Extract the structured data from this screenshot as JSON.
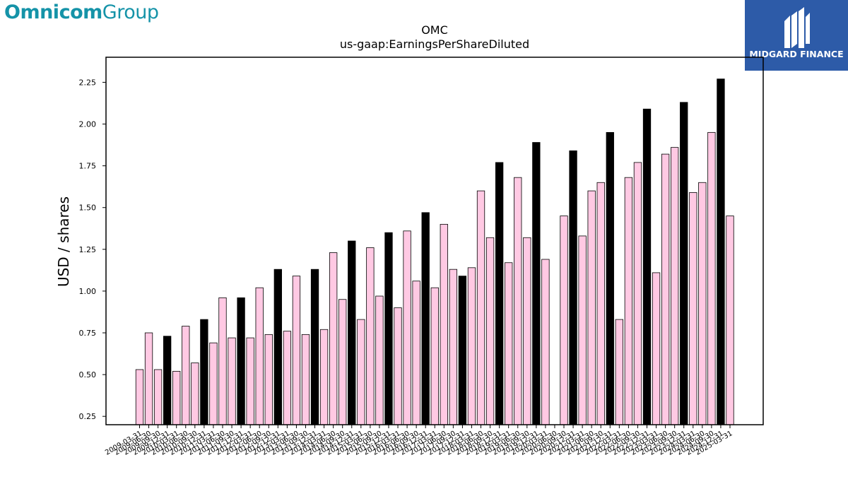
{
  "branding": {
    "left_logo_bold": "Omnicom",
    "left_logo_light": "Group",
    "right_logo_text": "MIDGARD FINANCE",
    "left_logo_color": "#1593a8",
    "right_logo_bg": "#2d5ba8"
  },
  "colors": {
    "bar_pink": "#ffc9e3",
    "bar_black": "#000000",
    "axis": "#000000"
  },
  "chart_data": {
    "type": "bar",
    "title": "OMC",
    "subtitle": "us-gaap:EarningsPerShareDiluted",
    "xlabel": "",
    "ylabel": "USD / shares",
    "ylim": [
      0.2,
      2.4
    ],
    "yticks": [
      "0.25",
      "0.50",
      "0.75",
      "1.00",
      "1.25",
      "1.50",
      "1.75",
      "2.00",
      "2.25"
    ],
    "grid": false,
    "categories": [
      "2009-03-31",
      "2009-06-30",
      "2009-09-30",
      "2009-12-31",
      "2010-03-31",
      "2010-06-30",
      "2010-09-30",
      "2010-12-31",
      "2011-03-31",
      "2011-06-30",
      "2011-09-30",
      "2011-12-31",
      "2012-03-31",
      "2012-06-30",
      "2012-09-30",
      "2012-12-31",
      "2013-03-31",
      "2013-06-30",
      "2013-09-30",
      "2013-12-31",
      "2014-03-31",
      "2014-06-30",
      "2014-09-30",
      "2014-12-31",
      "2015-03-31",
      "2015-06-30",
      "2015-09-30",
      "2015-12-31",
      "2016-03-31",
      "2016-06-30",
      "2016-09-30",
      "2016-12-31",
      "2017-03-31",
      "2017-06-30",
      "2017-09-30",
      "2017-12-31",
      "2018-03-31",
      "2018-06-30",
      "2018-09-30",
      "2018-12-31",
      "2019-03-31",
      "2019-06-30",
      "2019-09-30",
      "2019-12-31",
      "2020-03-31",
      "2020-06-30",
      "2020-09-30",
      "2020-12-31",
      "2021-03-31",
      "2021-06-30",
      "2021-09-30",
      "2021-12-31",
      "2022-03-31",
      "2022-06-30",
      "2022-09-30",
      "2022-12-31",
      "2023-03-31",
      "2023-06-30",
      "2023-09-30",
      "2023-12-31",
      "2024-03-31",
      "2024-06-30",
      "2024-09-30",
      "2024-12-31",
      "2025-03-31"
    ],
    "values": [
      0.53,
      0.75,
      0.53,
      0.73,
      0.52,
      0.79,
      0.57,
      0.83,
      0.69,
      0.96,
      0.72,
      0.96,
      0.72,
      1.02,
      0.74,
      1.13,
      0.76,
      1.09,
      0.74,
      1.13,
      0.77,
      1.23,
      0.95,
      1.3,
      0.83,
      1.26,
      0.97,
      1.35,
      0.9,
      1.36,
      1.06,
      1.47,
      1.02,
      1.4,
      1.13,
      1.09,
      1.14,
      1.6,
      1.32,
      1.77,
      1.17,
      1.68,
      1.32,
      1.89,
      1.19,
      0.15,
      1.45,
      1.84,
      1.33,
      1.6,
      1.65,
      1.95,
      0.83,
      1.68,
      1.77,
      2.09,
      1.11,
      1.82,
      1.86,
      2.13,
      1.59,
      1.65,
      1.95,
      2.27,
      1.45
    ],
    "highlight": [
      false,
      false,
      false,
      true,
      false,
      false,
      false,
      true,
      false,
      false,
      false,
      true,
      false,
      false,
      false,
      true,
      false,
      false,
      false,
      true,
      false,
      false,
      false,
      true,
      false,
      false,
      false,
      true,
      false,
      false,
      false,
      true,
      false,
      false,
      false,
      true,
      false,
      false,
      false,
      true,
      false,
      false,
      false,
      true,
      false,
      false,
      false,
      true,
      false,
      false,
      false,
      true,
      false,
      false,
      false,
      true,
      false,
      false,
      false,
      true,
      false,
      false,
      false,
      true,
      false
    ]
  }
}
